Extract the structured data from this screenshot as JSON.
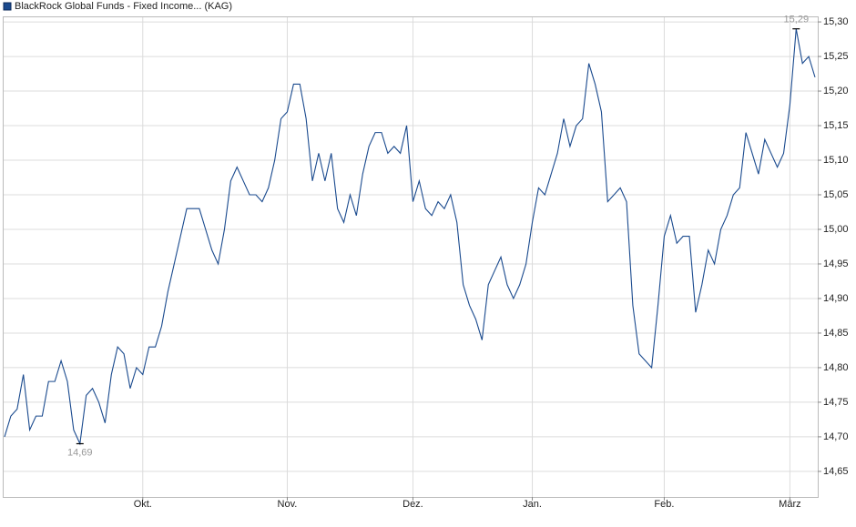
{
  "chart_data": {
    "type": "line",
    "series": [
      {
        "name": "BlackRock Global Funds - Fixed Income... (KAG)",
        "color": "#1a4a8e",
        "values": [
          14.7,
          14.73,
          14.74,
          14.79,
          14.71,
          14.73,
          14.73,
          14.78,
          14.78,
          14.81,
          14.78,
          14.71,
          14.69,
          14.76,
          14.77,
          14.75,
          14.72,
          14.79,
          14.83,
          14.82,
          14.77,
          14.8,
          14.79,
          14.83,
          14.83,
          14.86,
          14.91,
          14.95,
          14.99,
          15.03,
          15.03,
          15.03,
          15.0,
          14.97,
          14.95,
          15.0,
          15.07,
          15.09,
          15.07,
          15.05,
          15.05,
          15.04,
          15.06,
          15.1,
          15.16,
          15.17,
          15.21,
          15.21,
          15.16,
          15.07,
          15.11,
          15.07,
          15.11,
          15.03,
          15.01,
          15.05,
          15.02,
          15.08,
          15.12,
          15.14,
          15.14,
          15.11,
          15.12,
          15.11,
          15.15,
          15.04,
          15.07,
          15.03,
          15.02,
          15.04,
          15.03,
          15.05,
          15.01,
          14.92,
          14.89,
          14.87,
          14.84,
          14.92,
          14.94,
          14.96,
          14.92,
          14.9,
          14.92,
          14.95,
          15.01,
          15.06,
          15.05,
          15.08,
          15.11,
          15.16,
          15.12,
          15.15,
          15.16,
          15.24,
          15.21,
          15.17,
          15.04,
          15.05,
          15.06,
          15.04,
          14.89,
          14.82,
          14.81,
          14.8,
          14.89,
          14.99,
          15.02,
          14.98,
          14.99,
          14.99,
          14.88,
          14.92,
          14.97,
          14.95,
          15.0,
          15.02,
          15.05,
          15.06,
          15.14,
          15.11,
          15.08,
          15.13,
          15.11,
          15.09,
          15.11,
          15.18,
          15.29,
          15.24,
          15.25,
          15.22
        ]
      }
    ],
    "xlim": [
      0,
      129
    ],
    "xticks": [
      {
        "value": 22,
        "label": "Okt."
      },
      {
        "value": 45,
        "label": "Nov."
      },
      {
        "value": 65,
        "label": "Dez."
      },
      {
        "value": 84,
        "label": "Jan."
      },
      {
        "value": 105,
        "label": "Feb."
      },
      {
        "value": 125,
        "label": "März"
      }
    ],
    "ylim": [
      14.613,
      15.308
    ],
    "yticks": [
      {
        "value": 14.65,
        "label": "14,65"
      },
      {
        "value": 14.7,
        "label": "14,70"
      },
      {
        "value": 14.75,
        "label": "14,75"
      },
      {
        "value": 14.8,
        "label": "14,80"
      },
      {
        "value": 14.85,
        "label": "14,85"
      },
      {
        "value": 14.9,
        "label": "14,90"
      },
      {
        "value": 14.95,
        "label": "14,95"
      },
      {
        "value": 15.0,
        "label": "15,00"
      },
      {
        "value": 15.05,
        "label": "15,05"
      },
      {
        "value": 15.1,
        "label": "15,10"
      },
      {
        "value": 15.15,
        "label": "15,15"
      },
      {
        "value": 15.2,
        "label": "15,20"
      },
      {
        "value": 15.25,
        "label": "15,25"
      },
      {
        "value": 15.3,
        "label": "15,30"
      }
    ],
    "grid": true,
    "annotations": [
      {
        "x": 126,
        "y": 15.29,
        "label": "15,29"
      },
      {
        "x": 12,
        "y": 14.69,
        "label": "14,69"
      }
    ]
  }
}
